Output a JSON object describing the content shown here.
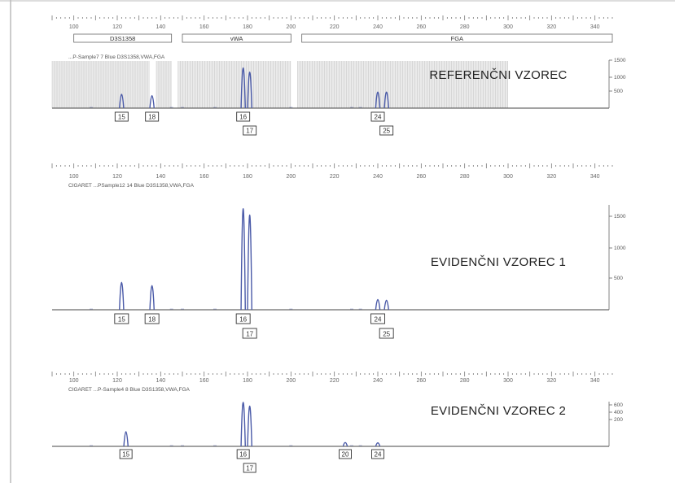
{
  "accent_colors": {
    "peak": "#4a5aa8",
    "marker_fill": "#d8d8d8",
    "frame": "#8a8a8a"
  },
  "panels": [
    {
      "title": "REFERENČNI VZOREC",
      "info": "...P-Sample7 7 Blue   D3S1358,VWA,FGA",
      "x_ticks": [
        "100",
        "120",
        "140",
        "160",
        "180",
        "200",
        "220",
        "240",
        "260",
        "280",
        "300",
        "320",
        "340"
      ],
      "y_ticks": [
        "1500",
        "1000",
        "500"
      ],
      "marker_boxes": [
        {
          "label": "D3S1358",
          "from": 100,
          "to": 145
        },
        {
          "label": "vWA",
          "from": 150,
          "to": 200
        },
        {
          "label": "FGA",
          "from": 205,
          "to": 348
        }
      ],
      "alleles": [
        {
          "label": "15",
          "size": 122,
          "row": 0
        },
        {
          "label": "18",
          "size": 136,
          "row": 0
        },
        {
          "label": "16",
          "size": 178,
          "row": 0
        },
        {
          "label": "17",
          "size": 181,
          "row": 1
        },
        {
          "label": "24",
          "size": 240,
          "row": 0
        },
        {
          "label": "25",
          "size": 244,
          "row": 1
        }
      ]
    },
    {
      "title": "EVIDENČNI VZOREC 1",
      "info": "CIGARET ...PSample12 14 Blue   D3S1358,VWA,FGA",
      "x_ticks": [
        "100",
        "120",
        "140",
        "160",
        "180",
        "200",
        "220",
        "240",
        "260",
        "280",
        "300",
        "320",
        "340"
      ],
      "y_ticks": [
        "1500",
        "1000",
        "500"
      ],
      "alleles": [
        {
          "label": "15",
          "size": 122,
          "row": 0
        },
        {
          "label": "18",
          "size": 136,
          "row": 0
        },
        {
          "label": "16",
          "size": 178,
          "row": 0
        },
        {
          "label": "17",
          "size": 181,
          "row": 1
        },
        {
          "label": "24",
          "size": 240,
          "row": 0
        },
        {
          "label": "25",
          "size": 244,
          "row": 1
        }
      ]
    },
    {
      "title": "EVIDENČNI VZOREC 2",
      "info": "CIGARET ...P-Sample4 8 Blue   D3S1358,VWA,FGA",
      "x_ticks": [
        "100",
        "120",
        "140",
        "160",
        "180",
        "200",
        "220",
        "240",
        "260",
        "280",
        "300",
        "320",
        "340"
      ],
      "y_ticks": [
        "600",
        "400",
        "200"
      ],
      "alleles": [
        {
          "label": "15",
          "size": 124,
          "row": 0
        },
        {
          "label": "16",
          "size": 178,
          "row": 0
        },
        {
          "label": "17",
          "size": 181,
          "row": 1
        },
        {
          "label": "20",
          "size": 225,
          "row": 0
        },
        {
          "label": "24",
          "size": 240,
          "row": 0
        }
      ]
    }
  ],
  "chart_data": [
    {
      "type": "line",
      "title": "REFERENČNI VZOREC",
      "xlim": [
        90,
        348
      ],
      "ylim": [
        0,
        1700
      ],
      "xlabel": "",
      "ylabel": "",
      "grid": true,
      "series": [
        {
          "peaks": [
            {
              "x": 122,
              "y": 500
            },
            {
              "x": 136,
              "y": 450
            },
            {
              "x": 178,
              "y": 1450
            },
            {
              "x": 181,
              "y": 1300
            },
            {
              "x": 240,
              "y": 580
            },
            {
              "x": 244,
              "y": 580
            }
          ]
        }
      ]
    },
    {
      "type": "line",
      "title": "EVIDENČNI VZOREC 1",
      "xlim": [
        90,
        348
      ],
      "ylim": [
        0,
        1650
      ],
      "xlabel": "",
      "ylabel": "",
      "grid": false,
      "series": [
        {
          "peaks": [
            {
              "x": 122,
              "y": 430
            },
            {
              "x": 136,
              "y": 380
            },
            {
              "x": 178,
              "y": 1590
            },
            {
              "x": 181,
              "y": 1490
            },
            {
              "x": 240,
              "y": 160
            },
            {
              "x": 244,
              "y": 150
            }
          ]
        }
      ]
    },
    {
      "type": "line",
      "title": "EVIDENČNI VZOREC 2",
      "xlim": [
        90,
        348
      ],
      "ylim": [
        0,
        700
      ],
      "xlabel": "",
      "ylabel": "",
      "grid": false,
      "series": [
        {
          "peaks": [
            {
              "x": 124,
              "y": 230
            },
            {
              "x": 178,
              "y": 690
            },
            {
              "x": 181,
              "y": 630
            },
            {
              "x": 225,
              "y": 60
            },
            {
              "x": 240,
              "y": 55
            }
          ]
        }
      ]
    }
  ]
}
